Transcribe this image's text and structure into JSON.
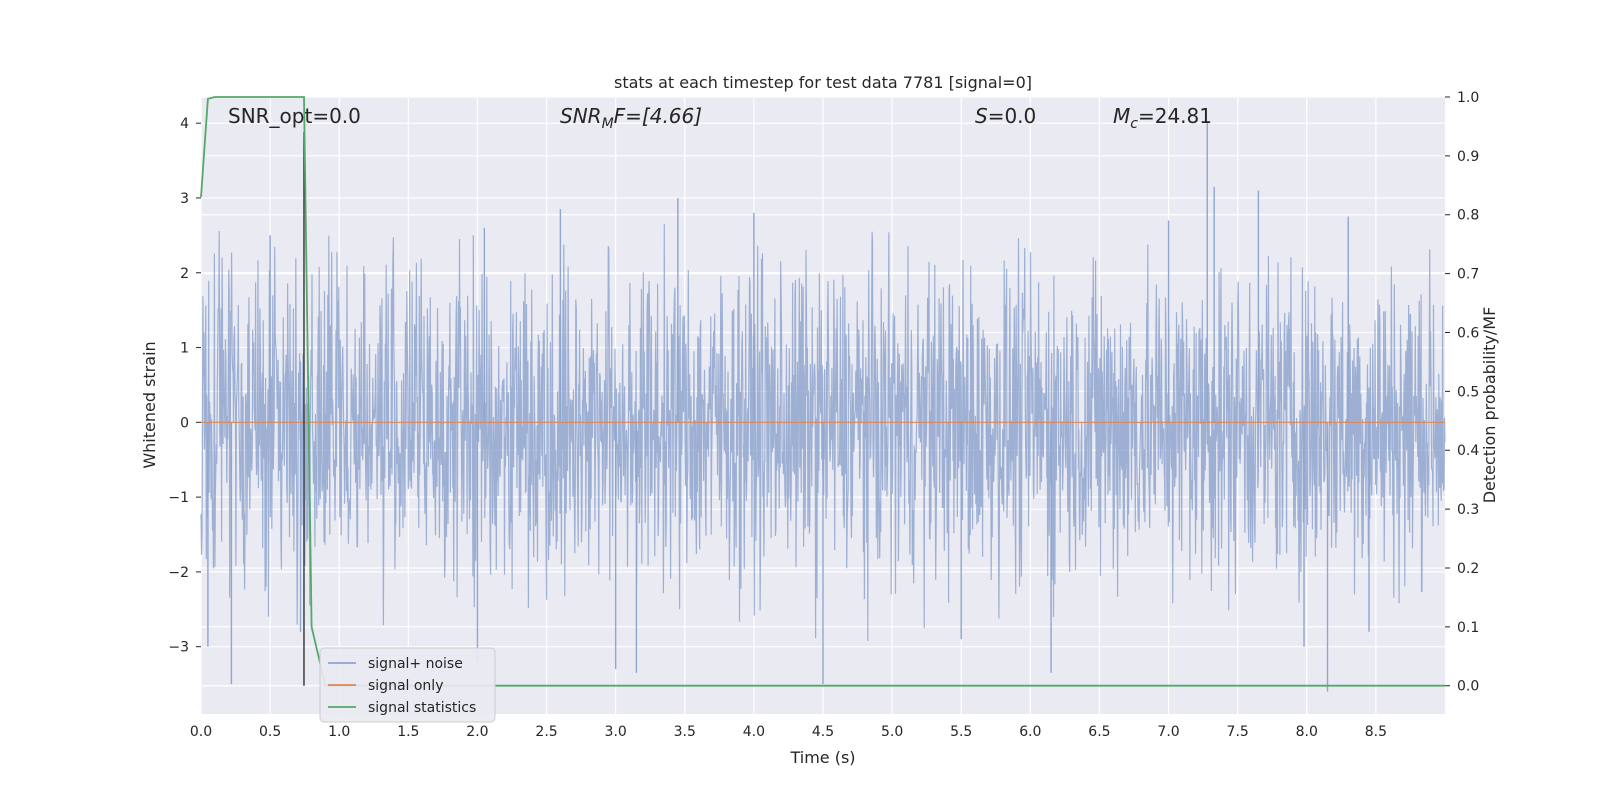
{
  "chart_data": {
    "type": "line",
    "title": "stats at each timestep for test data 7781 [signal=0]",
    "xlabel": "Time (s)",
    "ylabel": "Whitened strain",
    "y2label": "Detection probability/MF",
    "xlim": [
      0,
      9.0
    ],
    "ylim": [
      -3.9,
      4.35
    ],
    "y2lim": [
      -0.048,
      1.0
    ],
    "x_ticks": [
      0.0,
      0.5,
      1.0,
      1.5,
      2.0,
      2.5,
      3.0,
      3.5,
      4.0,
      4.5,
      5.0,
      5.5,
      6.0,
      6.5,
      7.0,
      7.5,
      8.0,
      8.5
    ],
    "x_tick_labels": [
      "0.0",
      "0.5",
      "1.0",
      "1.5",
      "2.0",
      "2.5",
      "3.0",
      "3.5",
      "4.0",
      "4.5",
      "5.0",
      "5.5",
      "6.0",
      "6.5",
      "7.0",
      "7.5",
      "8.0",
      "8.5"
    ],
    "y_ticks": [
      -3,
      -2,
      -1,
      0,
      1,
      2,
      3,
      4
    ],
    "y_tick_labels": [
      "−3",
      "−2",
      "−1",
      "0",
      "1",
      "2",
      "3",
      "4"
    ],
    "y2_ticks": [
      0.0,
      0.1,
      0.2,
      0.3,
      0.4,
      0.5,
      0.6,
      0.7,
      0.8,
      0.9,
      1.0
    ],
    "y2_tick_labels": [
      "0.0",
      "0.1",
      "0.2",
      "0.3",
      "0.4",
      "0.5",
      "0.6",
      "0.7",
      "0.8",
      "0.9",
      "1.0"
    ],
    "grid": true,
    "legend_position": "lower-left",
    "annotations": [
      {
        "kind": "plain",
        "text": "SNR_opt=0.0"
      },
      {
        "kind": "sub",
        "main": "SNR",
        "sub": "M",
        "rest": "F=[4.66]"
      },
      {
        "kind": "italic",
        "main": "S",
        "rest": "=0.0"
      },
      {
        "kind": "sub",
        "main": "M",
        "sub": "c",
        "rest": "=24.81"
      }
    ],
    "series": [
      {
        "name": "signal+ noise",
        "color": "#8fa6cf",
        "description": "noisy whitened strain, roughly within -2.5..2.5 with spikes",
        "spikes": [
          [
            0.05,
            -3.0
          ],
          [
            0.22,
            -3.5
          ],
          [
            0.5,
            2.5
          ],
          [
            0.72,
            -2.8
          ],
          [
            2.0,
            -3.2
          ],
          [
            2.05,
            2.6
          ],
          [
            2.6,
            2.85
          ],
          [
            3.0,
            -3.3
          ],
          [
            3.15,
            -3.35
          ],
          [
            3.45,
            3.0
          ],
          [
            4.0,
            2.8
          ],
          [
            4.5,
            -3.5
          ],
          [
            5.5,
            -2.9
          ],
          [
            6.15,
            -3.35
          ],
          [
            7.0,
            2.7
          ],
          [
            7.28,
            4.0
          ],
          [
            7.33,
            3.15
          ],
          [
            7.65,
            3.1
          ],
          [
            7.98,
            -3.0
          ],
          [
            8.15,
            -3.6
          ],
          [
            8.3,
            2.75
          ],
          [
            8.45,
            -2.8
          ]
        ]
      },
      {
        "name": "signal only",
        "color": "#dd8452",
        "y": 0.0
      },
      {
        "name": "signal statistics",
        "color": "#55a868",
        "axis": "right",
        "x": [
          0.0,
          0.05,
          0.1,
          0.15,
          0.5,
          0.7,
          0.745,
          0.8,
          0.9,
          1.0,
          9.0
        ],
        "y": [
          0.83,
          0.997,
          1.0,
          1.0,
          1.0,
          1.0,
          1.0,
          0.1,
          0.0,
          0.0,
          0.0
        ]
      }
    ],
    "vertical_line": {
      "x": 0.745,
      "color": "#333333"
    }
  }
}
